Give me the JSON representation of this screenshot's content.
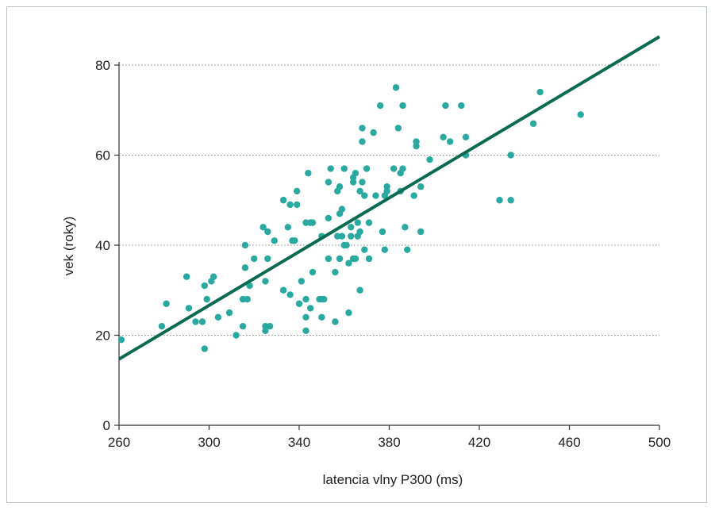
{
  "chart_data": {
    "type": "scatter",
    "title": "",
    "xlabel": "latencia vlny P300 (ms)",
    "ylabel": "vek (roky)",
    "xlim": [
      260,
      500
    ],
    "ylim": [
      0,
      80
    ],
    "xticks": [
      "260",
      "300",
      "340",
      "380",
      "420",
      "460",
      "500"
    ],
    "yticks": [
      "0",
      "20",
      "40",
      "60",
      "80"
    ],
    "grid": "horizontal dotted",
    "colors": {
      "points": "#2aa9a0",
      "regression": "#0b6a52",
      "axis": "#333333",
      "grid": "#888888"
    },
    "regression": {
      "x": [
        260,
        500
      ],
      "y": [
        14.7,
        86.3
      ]
    },
    "points": [
      [
        261,
        19
      ],
      [
        279,
        22
      ],
      [
        281,
        27
      ],
      [
        290,
        33
      ],
      [
        291,
        26
      ],
      [
        294,
        23
      ],
      [
        297,
        23
      ],
      [
        298,
        31
      ],
      [
        298,
        17
      ],
      [
        299,
        28
      ],
      [
        301,
        32
      ],
      [
        302,
        33
      ],
      [
        304,
        24
      ],
      [
        309,
        25
      ],
      [
        312,
        20
      ],
      [
        315,
        28
      ],
      [
        315,
        22
      ],
      [
        316,
        40
      ],
      [
        316,
        35
      ],
      [
        317,
        28
      ],
      [
        318,
        31
      ],
      [
        320,
        37
      ],
      [
        324,
        44
      ],
      [
        325,
        32
      ],
      [
        325,
        22
      ],
      [
        325,
        21
      ],
      [
        326,
        43
      ],
      [
        326,
        37
      ],
      [
        327,
        22
      ],
      [
        329,
        41
      ],
      [
        333,
        50
      ],
      [
        333,
        30
      ],
      [
        335,
        44
      ],
      [
        336,
        49
      ],
      [
        336,
        29
      ],
      [
        337,
        41
      ],
      [
        338,
        41
      ],
      [
        339,
        49
      ],
      [
        339,
        52
      ],
      [
        340,
        27
      ],
      [
        341,
        32
      ],
      [
        343,
        45
      ],
      [
        343,
        28
      ],
      [
        343,
        24
      ],
      [
        343,
        21
      ],
      [
        344,
        56
      ],
      [
        345,
        45
      ],
      [
        345,
        26
      ],
      [
        346,
        34
      ],
      [
        346,
        45
      ],
      [
        349,
        28
      ],
      [
        350,
        24
      ],
      [
        350,
        28
      ],
      [
        350,
        42
      ],
      [
        351,
        28
      ],
      [
        353,
        54
      ],
      [
        353,
        46
      ],
      [
        353,
        37
      ],
      [
        354,
        57
      ],
      [
        356,
        34
      ],
      [
        356,
        23
      ],
      [
        357,
        42
      ],
      [
        357,
        52
      ],
      [
        358,
        47
      ],
      [
        358,
        37
      ],
      [
        358,
        53
      ],
      [
        359,
        42
      ],
      [
        359,
        48
      ],
      [
        360,
        40
      ],
      [
        360,
        57
      ],
      [
        361,
        40
      ],
      [
        362,
        36
      ],
      [
        362,
        25
      ],
      [
        363,
        44
      ],
      [
        363,
        42
      ],
      [
        364,
        55
      ],
      [
        364,
        37
      ],
      [
        364,
        54
      ],
      [
        365,
        56
      ],
      [
        365,
        37
      ],
      [
        366,
        45
      ],
      [
        366,
        42
      ],
      [
        367,
        43
      ],
      [
        367,
        30
      ],
      [
        367,
        52
      ],
      [
        368,
        54
      ],
      [
        368,
        63
      ],
      [
        368,
        66
      ],
      [
        369,
        51
      ],
      [
        369,
        39
      ],
      [
        370,
        57
      ],
      [
        371,
        37
      ],
      [
        371,
        45
      ],
      [
        373,
        65
      ],
      [
        374,
        51
      ],
      [
        376,
        71
      ],
      [
        377,
        43
      ],
      [
        378,
        51
      ],
      [
        378,
        39
      ],
      [
        379,
        53
      ],
      [
        379,
        52
      ],
      [
        382,
        57
      ],
      [
        383,
        75
      ],
      [
        384,
        66
      ],
      [
        385,
        52
      ],
      [
        385,
        56
      ],
      [
        386,
        57
      ],
      [
        386,
        71
      ],
      [
        387,
        44
      ],
      [
        388,
        39
      ],
      [
        391,
        51
      ],
      [
        392,
        62
      ],
      [
        392,
        63
      ],
      [
        394,
        43
      ],
      [
        394,
        53
      ],
      [
        398,
        59
      ],
      [
        404,
        64
      ],
      [
        405,
        71
      ],
      [
        407,
        63
      ],
      [
        412,
        71
      ],
      [
        414,
        60
      ],
      [
        414,
        64
      ],
      [
        429,
        50
      ],
      [
        434,
        60
      ],
      [
        434,
        50
      ],
      [
        444,
        67
      ],
      [
        447,
        74
      ],
      [
        465,
        69
      ]
    ]
  }
}
